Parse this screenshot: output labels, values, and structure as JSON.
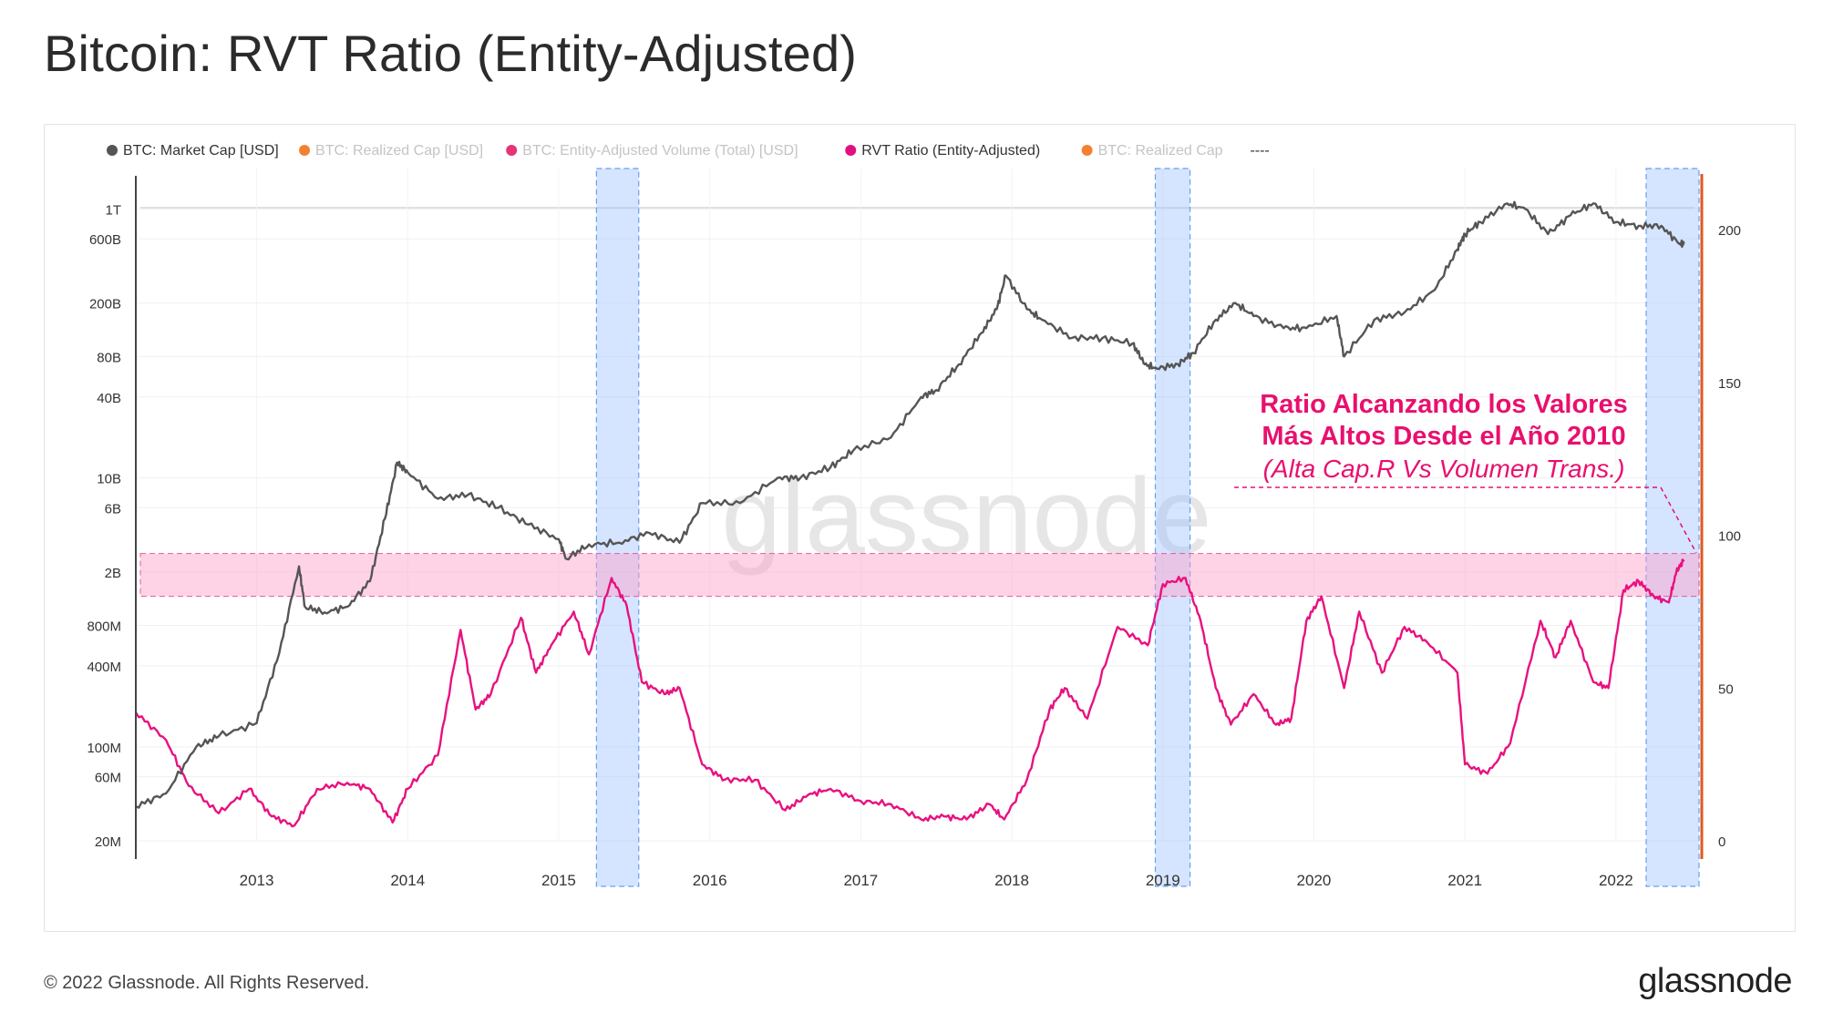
{
  "title": "Bitcoin: RVT Ratio (Entity-Adjusted)",
  "footer": {
    "copyright": "© 2022 Glassnode. All Rights Reserved.",
    "logo": "glassnode"
  },
  "watermark": "glassnode",
  "legend": [
    {
      "label": "BTC: Market Cap [USD]",
      "color": "#555555",
      "active": true
    },
    {
      "label": "BTC: Realized Cap [USD]",
      "color": "#f26b0f",
      "active": false
    },
    {
      "label": "BTC: Entity-Adjusted Volume (Total) [USD]",
      "color": "#e0115f",
      "active": false
    },
    {
      "label": "RVT Ratio (Entity-Adjusted)",
      "color": "#e0117f",
      "active": true
    },
    {
      "label": "BTC: Realized Cap",
      "color": "#f26b0f",
      "active": false
    },
    {
      "label": "----",
      "color": "#333333",
      "active": true
    }
  ],
  "annotation": {
    "line1": "Ratio Alcanzando los Valores",
    "line2": "Más Altos Desde el Año 2010",
    "line3": "(Alta Cap.R Vs Volumen Trans.)",
    "color": "#e8106f"
  },
  "colors": {
    "market_cap": "#555555",
    "rvt": "#e8117f",
    "band": "#ff9ec8",
    "highlight": "#9cc0ff",
    "axis_marker": "#e05a1c"
  },
  "chart_data": {
    "type": "line",
    "x_axis": {
      "ticks": [
        "2013",
        "2014",
        "2015",
        "2016",
        "2017",
        "2018",
        "2019",
        "2020",
        "2021",
        "2022"
      ],
      "range": [
        2012.2,
        2022.55
      ]
    },
    "y_axis_left": {
      "scale": "log",
      "ticks": [
        "20M",
        "60M",
        "100M",
        "400M",
        "800M",
        "2B",
        "6B",
        "10B",
        "40B",
        "80B",
        "200B",
        "600B",
        "1T"
      ],
      "range": [
        20000000.0,
        2000000000000.0
      ]
    },
    "y_axis_right": {
      "scale": "linear",
      "ticks": [
        "0",
        "50",
        "100",
        "150",
        "200"
      ],
      "range": [
        0,
        220
      ]
    },
    "highlight_ranges": [
      [
        2015.25,
        2015.53
      ],
      [
        2018.95,
        2019.18
      ],
      [
        2022.2,
        2022.55
      ]
    ],
    "horizontal_band": {
      "axis": "right",
      "range": [
        80,
        94
      ]
    },
    "series": [
      {
        "name": "BTC: Market Cap [USD]",
        "axis": "left",
        "x": [
          2012.2,
          2012.4,
          2012.6,
          2012.75,
          2013.0,
          2013.15,
          2013.28,
          2013.32,
          2013.45,
          2013.6,
          2013.75,
          2013.85,
          2013.93,
          2014.0,
          2014.2,
          2014.4,
          2014.6,
          2014.8,
          2015.0,
          2015.05,
          2015.2,
          2015.4,
          2015.6,
          2015.8,
          2015.95,
          2016.2,
          2016.45,
          2016.6,
          2016.8,
          2016.95,
          2017.2,
          2017.4,
          2017.5,
          2017.65,
          2017.8,
          2017.9,
          2017.96,
          2018.1,
          2018.2,
          2018.4,
          2018.6,
          2018.8,
          2018.88,
          2018.96,
          2019.1,
          2019.2,
          2019.35,
          2019.48,
          2019.6,
          2019.8,
          2019.95,
          2020.15,
          2020.2,
          2020.4,
          2020.6,
          2020.8,
          2020.95,
          2021.0,
          2021.1,
          2021.28,
          2021.4,
          2021.55,
          2021.7,
          2021.85,
          2022.0,
          2022.15,
          2022.3,
          2022.42,
          2022.45
        ],
        "values": [
          36000000.0,
          45000000.0,
          100000000.0,
          120000000.0,
          150000000.0,
          500000000.0,
          2200000000.0,
          1100000000.0,
          1000000000.0,
          1100000000.0,
          1700000000.0,
          5000000000.0,
          13000000000.0,
          11000000000.0,
          7000000000.0,
          7500000000.0,
          6000000000.0,
          4500000000.0,
          3500000000.0,
          2500000000.0,
          3200000000.0,
          3300000000.0,
          3900000000.0,
          3300000000.0,
          6500000000.0,
          6500000000.0,
          10000000000.0,
          10000000000.0,
          12000000000.0,
          16000000000.0,
          20000000000.0,
          40000000000.0,
          45000000000.0,
          70000000000.0,
          120000000000.0,
          180000000000.0,
          320000000000.0,
          180000000000.0,
          150000000000.0,
          110000000000.0,
          110000000000.0,
          100000000000.0,
          70000000000.0,
          65000000000.0,
          70000000000.0,
          85000000000.0,
          150000000000.0,
          200000000000.0,
          160000000000.0,
          130000000000.0,
          130000000000.0,
          160000000000.0,
          80000000000.0,
          150000000000.0,
          170000000000.0,
          250000000000.0,
          500000000000.0,
          650000000000.0,
          800000000000.0,
          1100000000000.0,
          1000000000000.0,
          650000000000.0,
          900000000000.0,
          1100000000000.0,
          800000000000.0,
          750000000000.0,
          750000000000.0,
          550000000000.0,
          550000000000.0
        ]
      },
      {
        "name": "RVT Ratio (Entity-Adjusted)",
        "axis": "right",
        "x": [
          2012.2,
          2012.4,
          2012.55,
          2012.75,
          2012.95,
          2013.1,
          2013.25,
          2013.4,
          2013.6,
          2013.75,
          2013.9,
          2014.0,
          2014.2,
          2014.35,
          2014.45,
          2014.55,
          2014.75,
          2014.85,
          2014.95,
          2015.1,
          2015.2,
          2015.35,
          2015.45,
          2015.55,
          2015.7,
          2015.8,
          2015.95,
          2016.1,
          2016.3,
          2016.5,
          2016.65,
          2016.8,
          2017.0,
          2017.2,
          2017.4,
          2017.55,
          2017.7,
          2017.85,
          2017.95,
          2018.1,
          2018.25,
          2018.35,
          2018.5,
          2018.7,
          2018.9,
          2019.0,
          2019.15,
          2019.25,
          2019.35,
          2019.45,
          2019.6,
          2019.75,
          2019.85,
          2019.95,
          2020.05,
          2020.2,
          2020.3,
          2020.45,
          2020.6,
          2020.75,
          2020.95,
          2021.0,
          2021.15,
          2021.3,
          2021.5,
          2021.6,
          2021.7,
          2021.85,
          2021.95,
          2022.05,
          2022.15,
          2022.25,
          2022.35,
          2022.4,
          2022.45
        ],
        "values": [
          42,
          33,
          18,
          9,
          17,
          8,
          5,
          17,
          19,
          17,
          6,
          17,
          28,
          69,
          43,
          48,
          73,
          55,
          64,
          75,
          61,
          86,
          77,
          52,
          48,
          50,
          25,
          20,
          20,
          10,
          15,
          17,
          13,
          12,
          7,
          8,
          7,
          12,
          7,
          20,
          43,
          50,
          40,
          70,
          64,
          84,
          86,
          72,
          50,
          38,
          48,
          38,
          40,
          72,
          80,
          50,
          75,
          55,
          70,
          65,
          55,
          25,
          22,
          32,
          72,
          60,
          72,
          52,
          50,
          82,
          85,
          80,
          78,
          88,
          92
        ]
      }
    ]
  }
}
